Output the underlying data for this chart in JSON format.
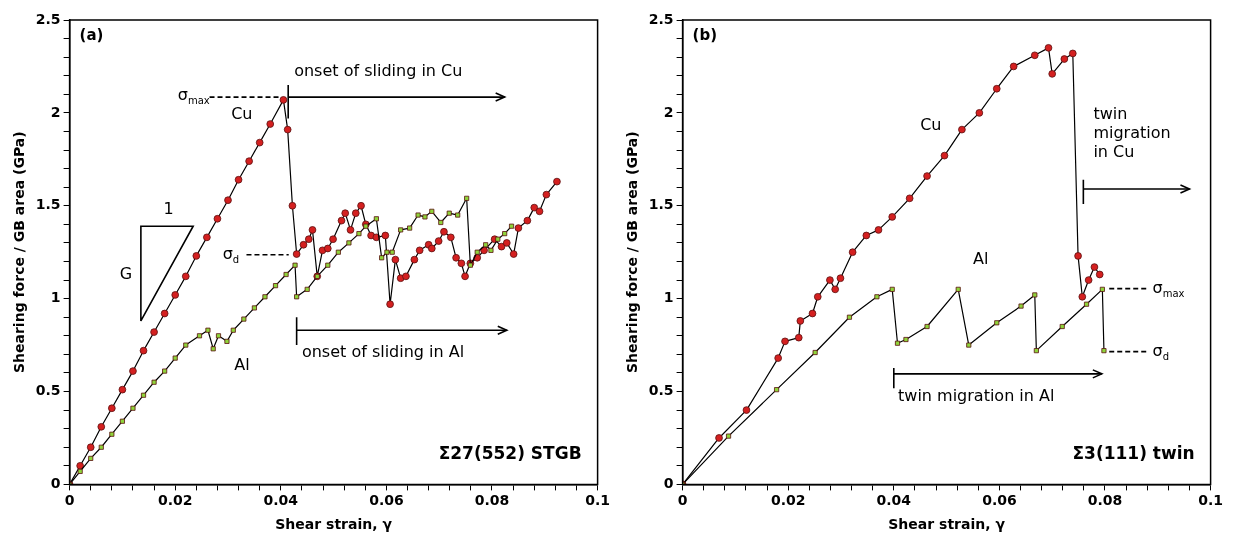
{
  "chart_data": [
    {
      "type": "line",
      "title": "(a)",
      "subtitle": "Σ27(552) STGB",
      "xlabel": "Shear strain, γ",
      "ylabel": "Shearing force / GB area (GPa)",
      "xlim": [
        0,
        0.1
      ],
      "ylim": [
        0,
        2.5
      ],
      "xticks": [
        0,
        {
          "value": 0.004,
          "label": null
        },
        {
          "value": 0.008,
          "label": null
        },
        {
          "value": 0.012,
          "label": null
        },
        {
          "value": 0.016,
          "label": null
        },
        0.02,
        {
          "value": 0.024,
          "label": null
        },
        {
          "value": 0.028,
          "label": null
        },
        {
          "value": 0.032,
          "label": null
        },
        {
          "value": 0.036,
          "label": null
        },
        0.04,
        {
          "value": 0.044,
          "label": null
        },
        {
          "value": 0.048,
          "label": null
        },
        {
          "value": 0.052,
          "label": null
        },
        {
          "value": 0.056,
          "label": null
        },
        0.06,
        {
          "value": 0.064,
          "label": null
        },
        {
          "value": 0.068,
          "label": null
        },
        {
          "value": 0.072,
          "label": null
        },
        {
          "value": 0.076,
          "label": null
        },
        0.08,
        {
          "value": 0.084,
          "label": null
        },
        {
          "value": 0.088,
          "label": null
        },
        {
          "value": 0.092,
          "label": null
        },
        {
          "value": 0.096,
          "label": null
        },
        0.1
      ],
      "yticks": [
        0,
        {
          "value": 0.1,
          "label": null
        },
        {
          "value": 0.2,
          "label": null
        },
        {
          "value": 0.3,
          "label": null
        },
        {
          "value": 0.4,
          "label": null
        },
        0.5,
        {
          "value": 0.6,
          "label": null
        },
        {
          "value": 0.7,
          "label": null
        },
        {
          "value": 0.8,
          "label": null
        },
        {
          "value": 0.9,
          "label": null
        },
        1,
        {
          "value": 1.1,
          "label": null
        },
        {
          "value": 1.2,
          "label": null
        },
        {
          "value": 1.3,
          "label": null
        },
        {
          "value": 1.4,
          "label": null
        },
        1.5,
        {
          "value": 1.6,
          "label": null
        },
        {
          "value": 1.7,
          "label": null
        },
        {
          "value": 1.8,
          "label": null
        },
        {
          "value": 1.9,
          "label": null
        },
        2,
        {
          "value": 2.1,
          "label": null
        },
        {
          "value": 2.2,
          "label": null
        },
        {
          "value": 2.3,
          "label": null
        },
        {
          "value": 2.4,
          "label": null
        },
        2.5
      ],
      "grid": false,
      "legend": false,
      "series": [
        {
          "color": "#d42020",
          "marker": "circle",
          "x": [
            0,
            0.002,
            0.004,
            0.006,
            0.008,
            0.01,
            0.012,
            0.014,
            0.016,
            0.018,
            0.02,
            0.022,
            0.024,
            0.026,
            0.028,
            0.03,
            0.032,
            0.034,
            0.036,
            0.038,
            0.0405,
            0.0413,
            0.0422,
            0.043,
            0.0443,
            0.0453,
            0.046,
            0.0469,
            0.0479,
            0.0489,
            0.0499,
            0.0515,
            0.0522,
            0.0532,
            0.0542,
            0.0552,
            0.0561,
            0.0571,
            0.0581,
            0.0598,
            0.0607,
            0.0617,
            0.0627,
            0.0637,
            0.0653,
            0.0663,
            0.068,
            0.0686,
            0.0699,
            0.0709,
            0.0722,
            0.0732,
            0.0742,
            0.0749,
            0.0759,
            0.0772,
            0.0785,
            0.0805,
            0.0818,
            0.0828,
            0.0841,
            0.085,
            0.0867,
            0.088,
            0.089,
            0.0903,
            0.0923
          ],
          "values": [
            0,
            0.1,
            0.2,
            0.31,
            0.41,
            0.51,
            0.61,
            0.72,
            0.82,
            0.92,
            1.02,
            1.12,
            1.23,
            1.33,
            1.43,
            1.53,
            1.64,
            1.74,
            1.84,
            1.94,
            2.07,
            1.91,
            1.5,
            1.24,
            1.29,
            1.32,
            1.37,
            1.12,
            1.26,
            1.27,
            1.32,
            1.42,
            1.46,
            1.37,
            1.46,
            1.5,
            1.4,
            1.34,
            1.33,
            1.34,
            0.97,
            1.21,
            1.11,
            1.12,
            1.21,
            1.26,
            1.29,
            1.27,
            1.31,
            1.36,
            1.33,
            1.22,
            1.19,
            1.12,
            1.19,
            1.22,
            1.26,
            1.32,
            1.28,
            1.3,
            1.24,
            1.38,
            1.42,
            1.49,
            1.47,
            1.56,
            1.63
          ]
        },
        {
          "color": "#8fd43a",
          "marker": "square",
          "x": [
            0,
            0.002,
            0.004,
            0.006,
            0.008,
            0.01,
            0.012,
            0.014,
            0.016,
            0.018,
            0.02,
            0.022,
            0.0246,
            0.0262,
            0.0272,
            0.0282,
            0.0298,
            0.031,
            0.033,
            0.035,
            0.037,
            0.039,
            0.041,
            0.0427,
            0.043,
            0.045,
            0.0469,
            0.0489,
            0.0509,
            0.0529,
            0.0548,
            0.0561,
            0.0581,
            0.0591,
            0.0601,
            0.0611,
            0.0627,
            0.0644,
            0.066,
            0.0673,
            0.0686,
            0.0703,
            0.0719,
            0.0735,
            0.0752,
            0.0759,
            0.0772,
            0.0788,
            0.0798,
            0.0811,
            0.0824,
            0.0837
          ],
          "values": [
            0,
            0.07,
            0.14,
            0.2,
            0.27,
            0.34,
            0.41,
            0.48,
            0.55,
            0.61,
            0.68,
            0.75,
            0.8,
            0.83,
            0.73,
            0.8,
            0.77,
            0.83,
            0.89,
            0.95,
            1.01,
            1.07,
            1.13,
            1.18,
            1.01,
            1.05,
            1.12,
            1.18,
            1.25,
            1.3,
            1.35,
            1.39,
            1.43,
            1.22,
            1.25,
            1.25,
            1.37,
            1.38,
            1.45,
            1.44,
            1.47,
            1.41,
            1.46,
            1.45,
            1.54,
            1.18,
            1.25,
            1.29,
            1.26,
            1.32,
            1.35,
            1.39
          ]
        }
      ],
      "annotations": [
        "Cu",
        "Al",
        "σ$_{max}$",
        "σ$_{d}$",
        {
          "text": "onset of sliding in Cu",
          "x": 0.0414,
          "y": 2.085
        },
        "onset of sliding in Al",
        "G",
        "1"
      ]
    },
    {
      "type": "line",
      "title": "(b)",
      "subtitle": "Σ3(111) twin",
      "xlabel": "Shear strain, γ",
      "ylabel": "Shearing force / GB area (GPa)",
      "xlim": [
        0,
        0.1
      ],
      "ylim": [
        0,
        2.5
      ],
      "xticks": [
        0,
        {
          "value": 0.004,
          "label": null
        },
        {
          "value": 0.008,
          "label": null
        },
        {
          "value": 0.012,
          "label": null
        },
        {
          "value": 0.016,
          "label": null
        },
        0.02,
        {
          "value": 0.024,
          "label": null
        },
        {
          "value": 0.028,
          "label": null
        },
        {
          "value": 0.032,
          "label": null
        },
        {
          "value": 0.036,
          "label": null
        },
        0.04,
        {
          "value": 0.044,
          "label": null
        },
        {
          "value": 0.048,
          "label": null
        },
        {
          "value": 0.052,
          "label": null
        },
        {
          "value": 0.056,
          "label": null
        },
        0.06,
        {
          "value": 0.064,
          "label": null
        },
        {
          "value": 0.068,
          "label": null
        },
        {
          "value": 0.072,
          "label": null
        },
        {
          "value": 0.076,
          "label": null
        },
        0.08,
        {
          "value": 0.084,
          "label": null
        },
        {
          "value": 0.088,
          "label": null
        },
        {
          "value": 0.092,
          "label": null
        },
        {
          "value": 0.096,
          "label": null
        },
        0.1
      ],
      "yticks": [
        0,
        {
          "value": 0.1,
          "label": null
        },
        {
          "value": 0.2,
          "label": null
        },
        {
          "value": 0.3,
          "label": null
        },
        {
          "value": 0.4,
          "label": null
        },
        0.5,
        {
          "value": 0.6,
          "label": null
        },
        {
          "value": 0.7,
          "label": null
        },
        {
          "value": 0.8,
          "label": null
        },
        {
          "value": 0.9,
          "label": null
        },
        1,
        {
          "value": 1.1,
          "label": null
        },
        {
          "value": 1.2,
          "label": null
        },
        {
          "value": 1.3,
          "label": null
        },
        {
          "value": 1.4,
          "label": null
        },
        1.5,
        {
          "value": 1.6,
          "label": null
        },
        {
          "value": 1.7,
          "label": null
        },
        {
          "value": 1.8,
          "label": null
        },
        {
          "value": 1.9,
          "label": null
        },
        2,
        {
          "value": 2.1,
          "label": null
        },
        {
          "value": 2.2,
          "label": null
        },
        {
          "value": 2.3,
          "label": null
        },
        {
          "value": 2.4,
          "label": null
        },
        2.5
      ],
      "grid": false,
      "legend": false,
      "series": [
        {
          "color": "#d42020",
          "marker": "circle",
          "x": [
            0,
            0.0069,
            0.0121,
            0.0181,
            0.0194,
            0.022,
            0.0223,
            0.0246,
            0.0256,
            0.0279,
            0.0289,
            0.0299,
            0.0322,
            0.0348,
            0.0371,
            0.0397,
            0.043,
            0.0463,
            0.0496,
            0.0529,
            0.0562,
            0.0595,
            0.0627,
            0.0667,
            0.0693,
            0.07,
            0.0723,
            0.0739,
            0.0749,
            0.0757,
            0.0769,
            0.078,
            0.079
          ],
          "values": [
            0,
            0.25,
            0.4,
            0.68,
            0.77,
            0.79,
            0.88,
            0.92,
            1.01,
            1.1,
            1.05,
            1.11,
            1.25,
            1.34,
            1.37,
            1.44,
            1.54,
            1.66,
            1.77,
            1.91,
            2.0,
            2.13,
            2.25,
            2.31,
            2.35,
            2.21,
            2.29,
            2.32,
            1.23,
            1.01,
            1.1,
            1.17,
            1.13
          ]
        },
        {
          "color": "#8fd43a",
          "marker": "square",
          "x": [
            0,
            0.0087,
            0.0178,
            0.0251,
            0.0316,
            0.0368,
            0.0397,
            0.0407,
            0.0423,
            0.0463,
            0.0522,
            0.0542,
            0.0595,
            0.0641,
            0.0667,
            0.067,
            0.0719,
            0.0765,
            0.0795,
            0.0798
          ],
          "values": [
            0,
            0.26,
            0.51,
            0.71,
            0.9,
            1.01,
            1.05,
            0.76,
            0.78,
            0.85,
            1.05,
            0.75,
            0.87,
            0.96,
            1.02,
            0.72,
            0.85,
            0.97,
            1.05,
            0.72
          ]
        }
      ],
      "annotations": [
        "Cu",
        "Al",
        "twin\nmigration\nin Cu",
        "σ$_{max}$",
        "σ$_{d}$",
        "twin migration in Al"
      ]
    }
  ]
}
